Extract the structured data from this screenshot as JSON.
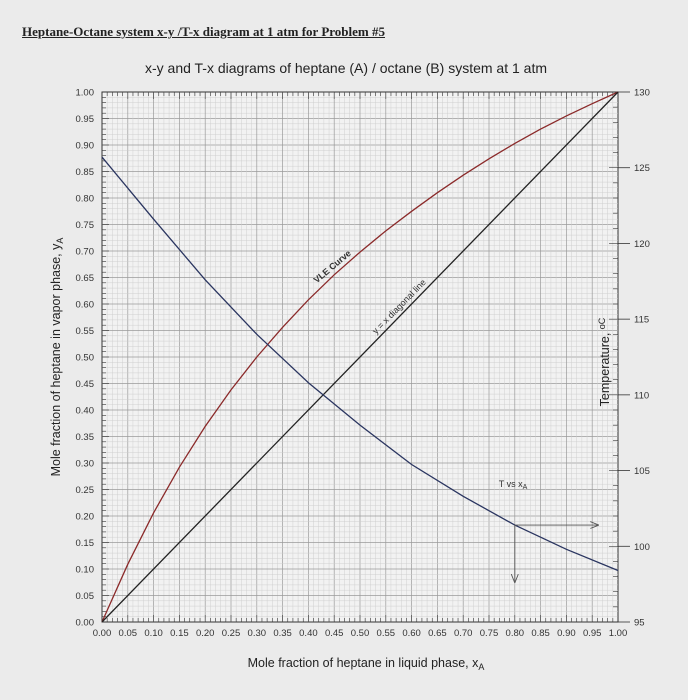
{
  "document_heading": "Heptane-Octane system x-y /T-x diagram at 1 atm for Problem #5",
  "chart_data": {
    "type": "line",
    "title": "x-y  and T-x diagrams of heptane (A) / octane (B) system at 1 atm",
    "xlabel": "Mole fraction of heptane in liquid phase, x",
    "xlabel_sub": "A",
    "ylabel": "Mole fraction of heptane in vapor phase, y",
    "ylabel_sub": "A",
    "y2label": "Temperature, ",
    "y2label_unit": "oC",
    "xlim": [
      0,
      1
    ],
    "ylim": [
      0,
      1
    ],
    "y2lim": [
      95,
      130
    ],
    "grid": true,
    "x_ticks": [
      "0.00",
      "0.05",
      "0.10",
      "0.15",
      "0.20",
      "0.25",
      "0.30",
      "0.35",
      "0.40",
      "0.45",
      "0.50",
      "0.55",
      "0.60",
      "0.65",
      "0.70",
      "0.75",
      "0.80",
      "0.85",
      "0.90",
      "0.95",
      "1.00"
    ],
    "y_ticks": [
      "0.00",
      "0.05",
      "0.10",
      "0.15",
      "0.20",
      "0.25",
      "0.30",
      "0.35",
      "0.40",
      "0.45",
      "0.50",
      "0.55",
      "0.60",
      "0.65",
      "0.70",
      "0.75",
      "0.80",
      "0.85",
      "0.90",
      "0.95",
      "1.00"
    ],
    "y2_ticks": [
      "95",
      "100",
      "105",
      "110",
      "115",
      "120",
      "125",
      "130"
    ],
    "series": [
      {
        "label": "VLE Curve",
        "axis": "left",
        "color": "#8b2a2a",
        "x": [
          0,
          0.05,
          0.1,
          0.15,
          0.2,
          0.25,
          0.3,
          0.35,
          0.4,
          0.45,
          0.5,
          0.55,
          0.6,
          0.65,
          0.7,
          0.75,
          0.8,
          0.85,
          0.9,
          0.95,
          1.0
        ],
        "y": [
          0,
          0.109,
          0.206,
          0.292,
          0.369,
          0.438,
          0.5,
          0.556,
          0.608,
          0.655,
          0.698,
          0.738,
          0.775,
          0.81,
          0.843,
          0.874,
          0.903,
          0.93,
          0.955,
          0.978,
          1.0
        ]
      },
      {
        "label": "y = x diagonal line",
        "axis": "left",
        "color": "#222222",
        "x": [
          0,
          1
        ],
        "y": [
          0,
          1
        ]
      },
      {
        "label": "T vs x",
        "label_sub": "A",
        "axis": "right",
        "color": "#2a3560",
        "x": [
          0,
          0.1,
          0.2,
          0.3,
          0.4,
          0.5,
          0.6,
          0.7,
          0.8,
          0.9,
          1.0
        ],
        "y": [
          125.7,
          121.6,
          117.6,
          114.0,
          110.8,
          108.0,
          105.4,
          103.3,
          101.4,
          99.8,
          98.4
        ]
      }
    ],
    "annotations": {
      "vle_label": "VLE Curve",
      "diagonal_label": "y = x diagonal line",
      "t_label": "T vs x",
      "t_label_sub": "A",
      "guide_x": 0.8
    }
  }
}
